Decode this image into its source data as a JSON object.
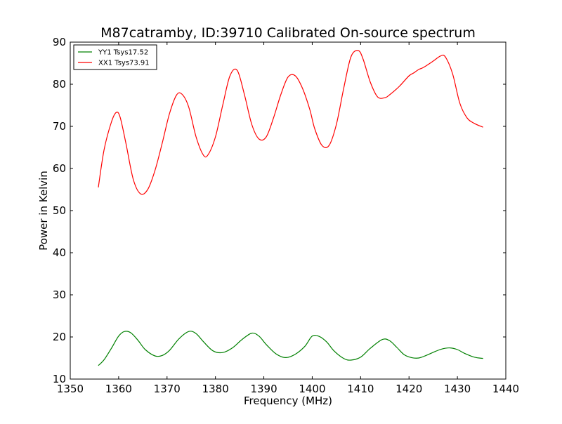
{
  "chart_data": {
    "type": "line",
    "title": "M87catramby, ID:39710 Calibrated On-source spectrum",
    "xlabel": "Frequency (MHz)",
    "ylabel": "Power in Kelvin",
    "xlim": [
      1350,
      1440
    ],
    "ylim": [
      10,
      90
    ],
    "xticks": [
      1350,
      1360,
      1370,
      1380,
      1390,
      1400,
      1410,
      1420,
      1430,
      1440
    ],
    "yticks": [
      10,
      20,
      30,
      40,
      50,
      60,
      70,
      80,
      90
    ],
    "grid": false,
    "legend_position": "top-left",
    "series": [
      {
        "name": "YY1 Tsys17.52",
        "color": "#008000",
        "x": [
          1355.8,
          1357.0,
          1358.5,
          1360.0,
          1361.2,
          1362.5,
          1364.0,
          1365.5,
          1367.5,
          1369.0,
          1370.5,
          1372.5,
          1374.5,
          1376.0,
          1377.5,
          1379.5,
          1381.5,
          1383.5,
          1385.5,
          1387.5,
          1389.0,
          1390.5,
          1392.5,
          1394.5,
          1396.5,
          1398.5,
          1400.0,
          1401.5,
          1403.0,
          1404.5,
          1406.5,
          1408.0,
          1410.0,
          1412.0,
          1414.5,
          1416.0,
          1417.5,
          1419.0,
          1420.5,
          1422.0,
          1423.5,
          1425.5,
          1427.0,
          1428.5,
          1430.0,
          1431.5,
          1433.5,
          1435.3
        ],
        "y": [
          13.2,
          14.6,
          17.3,
          20.2,
          21.3,
          21.0,
          19.2,
          17.0,
          15.5,
          15.6,
          16.8,
          19.6,
          21.3,
          20.8,
          18.9,
          16.7,
          16.3,
          17.4,
          19.4,
          20.9,
          20.2,
          18.2,
          16.0,
          15.1,
          15.9,
          17.8,
          20.2,
          20.1,
          18.8,
          16.7,
          14.9,
          14.5,
          15.2,
          17.3,
          19.4,
          19.1,
          17.5,
          15.8,
          15.1,
          15.0,
          15.6,
          16.6,
          17.2,
          17.4,
          17.0,
          16.1,
          15.2,
          14.9
        ]
      },
      {
        "name": "XX1 Tsys73.91",
        "color": "#ff0000",
        "x": [
          1355.8,
          1357.0,
          1358.5,
          1359.5,
          1360.3,
          1361.5,
          1363.0,
          1364.5,
          1366.0,
          1367.5,
          1369.0,
          1370.5,
          1372.0,
          1373.2,
          1374.5,
          1376.0,
          1377.5,
          1378.5,
          1380.0,
          1381.5,
          1383.0,
          1384.5,
          1386.0,
          1387.5,
          1389.0,
          1390.5,
          1392.0,
          1393.5,
          1395.0,
          1396.5,
          1398.0,
          1399.5,
          1400.5,
          1402.0,
          1403.5,
          1405.0,
          1406.5,
          1408.0,
          1409.5,
          1410.5,
          1412.0,
          1413.5,
          1415.0,
          1416.0,
          1418.0,
          1420.0,
          1421.0,
          1422.0,
          1423.0,
          1425.0,
          1426.5,
          1427.5,
          1429.0,
          1430.5,
          1432.0,
          1433.5,
          1435.3
        ],
        "y": [
          55.5,
          64.5,
          71.0,
          73.3,
          72.2,
          66.0,
          57.5,
          54.0,
          55.0,
          59.5,
          66.0,
          73.0,
          77.5,
          77.5,
          74.5,
          67.5,
          63.2,
          63.3,
          67.5,
          75.0,
          82.0,
          83.3,
          77.5,
          70.5,
          67.0,
          67.5,
          72.0,
          77.5,
          81.7,
          82.0,
          79.0,
          74.0,
          69.5,
          65.5,
          65.5,
          70.5,
          79.0,
          86.5,
          88.0,
          86.0,
          80.5,
          77.0,
          76.8,
          77.5,
          79.5,
          82.0,
          82.7,
          83.5,
          84.0,
          85.5,
          86.7,
          86.5,
          82.5,
          75.5,
          72.0,
          70.7,
          69.8
        ]
      }
    ]
  }
}
